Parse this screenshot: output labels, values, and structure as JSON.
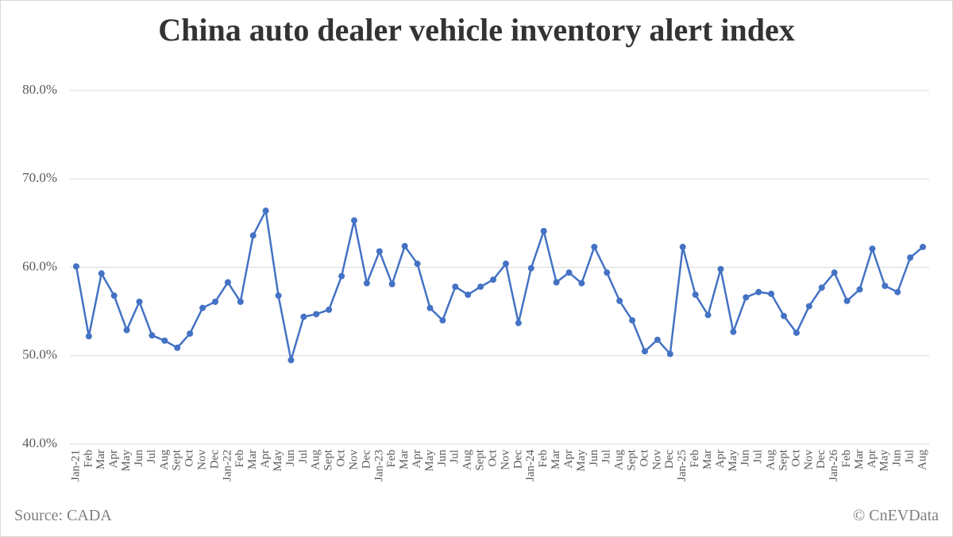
{
  "chart_data": {
    "type": "line",
    "title": "China auto dealer vehicle inventory alert index",
    "source": "Source: CADA",
    "credit": "© CnEVData",
    "categories": [
      "Jan-21",
      "Feb",
      "Mar",
      "Apr",
      "May",
      "Jun",
      "Jul",
      "Aug",
      "Sept",
      "Oct",
      "Nov",
      "Dec",
      "Jan-22",
      "Feb",
      "Mar",
      "Apr",
      "May",
      "Jun",
      "Jul",
      "Aug",
      "Sept",
      "Oct",
      "Nov",
      "Dec",
      "Jan-23",
      "Feb",
      "Mar",
      "Apr",
      "May",
      "Jun",
      "Jul",
      "Aug",
      "Sept",
      "Oct",
      "Nov",
      "Dec",
      "Jan-24",
      "Feb",
      "Mar",
      "Apr",
      "May",
      "Jun",
      "Jul",
      "Aug",
      "Sept",
      "Oct",
      "Nov",
      "Dec",
      "Jan-25",
      "Feb",
      "Mar",
      "Apr",
      "May",
      "Jun",
      "Jul",
      "Aug",
      "Sept",
      "Oct",
      "Nov",
      "Dec",
      "Jan-26",
      "Feb",
      "Mar",
      "Apr",
      "May",
      "Jun",
      "Jul",
      "Aug"
    ],
    "values": [
      60.1,
      52.2,
      59.3,
      56.8,
      52.9,
      56.1,
      52.3,
      51.7,
      50.9,
      52.5,
      55.4,
      56.1,
      58.3,
      56.1,
      63.6,
      66.4,
      56.8,
      49.5,
      54.4,
      54.7,
      55.2,
      59.0,
      65.3,
      58.2,
      61.8,
      58.1,
      62.4,
      60.4,
      55.4,
      54.0,
      57.8,
      56.9,
      57.8,
      58.6,
      60.4,
      53.7,
      59.9,
      64.1,
      58.3,
      59.4,
      58.2,
      62.3,
      59.4,
      56.2,
      54.0,
      50.5,
      51.8,
      50.2,
      62.3,
      56.9,
      54.6,
      59.8,
      52.7,
      56.6,
      57.2,
      57.0,
      54.5,
      52.6,
      55.6,
      57.7,
      59.4,
      56.2,
      57.5,
      62.1,
      57.9,
      57.2,
      61.1,
      62.3
    ],
    "color": "#4472c4",
    "ylim": [
      40,
      80
    ],
    "yticks": [
      {
        "value": 40,
        "label": "40.0%"
      },
      {
        "value": 50,
        "label": "50.0%"
      },
      {
        "value": 60,
        "label": "60.0%"
      },
      {
        "value": 70,
        "label": "70.0%"
      },
      {
        "value": 80,
        "label": "80.0%"
      }
    ],
    "grid": true
  }
}
